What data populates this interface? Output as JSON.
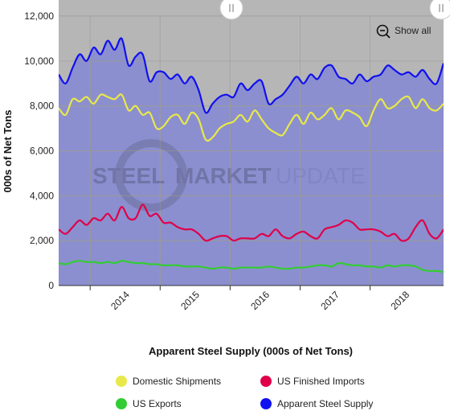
{
  "ui": {
    "show_all_label": "Show all",
    "watermark": {
      "part1": "STEEL",
      "part2": "MARKET",
      "part3": "UPDATE"
    }
  },
  "colors": {
    "plot_bg": "#8b8fcf",
    "navigator_bg": "#b6b6b6",
    "grid": "#9a9a9a",
    "domestic": "#e8e84a",
    "imports": "#e0004a",
    "exports": "#33cc33",
    "supply": "#1010f0"
  },
  "chart_data": {
    "type": "line",
    "title": "",
    "xlabel": "Apparent Steel Supply (000s of Net Tons)",
    "ylabel": "000s of Net Tons",
    "ylim": [
      0,
      12000
    ],
    "yticks": [
      "0",
      "2,000",
      "4,000",
      "6,000",
      "8,000",
      "10,000",
      "12,000"
    ],
    "xlim": [
      2013.55,
      2019.05
    ],
    "xticks": [
      "2014",
      "2015",
      "2016",
      "2017",
      "2018"
    ],
    "legend_position": "bottom",
    "series": [
      {
        "name": "Domestic Shipments",
        "color": "#e8e84a",
        "x": [
          2013.55,
          2013.65,
          2013.75,
          2013.85,
          2013.95,
          2014.05,
          2014.15,
          2014.25,
          2014.35,
          2014.45,
          2014.55,
          2014.65,
          2014.75,
          2014.85,
          2014.95,
          2015.05,
          2015.15,
          2015.25,
          2015.35,
          2015.45,
          2015.55,
          2015.65,
          2015.75,
          2015.85,
          2015.95,
          2016.05,
          2016.15,
          2016.25,
          2016.35,
          2016.45,
          2016.55,
          2016.65,
          2016.75,
          2016.85,
          2016.95,
          2017.05,
          2017.15,
          2017.25,
          2017.35,
          2017.45,
          2017.55,
          2017.65,
          2017.75,
          2017.85,
          2017.95,
          2018.05,
          2018.15,
          2018.25,
          2018.35,
          2018.45,
          2018.55,
          2018.65,
          2018.75,
          2018.85,
          2018.95,
          2019.05
        ],
        "values": [
          7900,
          7600,
          8300,
          8200,
          8400,
          8100,
          8500,
          8400,
          8300,
          8500,
          7800,
          8000,
          7600,
          7700,
          7000,
          7100,
          7500,
          7600,
          7200,
          7700,
          7400,
          6500,
          6600,
          7000,
          7200,
          7300,
          7600,
          7300,
          7800,
          7400,
          7000,
          6800,
          6700,
          7200,
          7600,
          7200,
          7700,
          7400,
          7600,
          7900,
          7400,
          7800,
          7700,
          7500,
          7100,
          7800,
          8300,
          7900,
          8000,
          8300,
          8400,
          7900,
          8300,
          7900,
          7800,
          8100
        ]
      },
      {
        "name": "US Finished Imports",
        "color": "#e0004a",
        "x": [
          2013.55,
          2013.65,
          2013.75,
          2013.85,
          2013.95,
          2014.05,
          2014.15,
          2014.25,
          2014.35,
          2014.45,
          2014.55,
          2014.65,
          2014.75,
          2014.85,
          2014.95,
          2015.05,
          2015.15,
          2015.25,
          2015.35,
          2015.45,
          2015.55,
          2015.65,
          2015.75,
          2015.85,
          2015.95,
          2016.05,
          2016.15,
          2016.25,
          2016.35,
          2016.45,
          2016.55,
          2016.65,
          2016.75,
          2016.85,
          2016.95,
          2017.05,
          2017.15,
          2017.25,
          2017.35,
          2017.45,
          2017.55,
          2017.65,
          2017.75,
          2017.85,
          2017.95,
          2018.05,
          2018.15,
          2018.25,
          2018.35,
          2018.45,
          2018.55,
          2018.65,
          2018.75,
          2018.85,
          2018.95,
          2019.05
        ],
        "values": [
          2500,
          2300,
          2600,
          2900,
          2700,
          3000,
          2900,
          3200,
          2900,
          3500,
          3000,
          3000,
          3600,
          3100,
          3200,
          2800,
          2800,
          2600,
          2500,
          2500,
          2300,
          2000,
          2100,
          2200,
          2200,
          2000,
          2100,
          2100,
          2100,
          2300,
          2200,
          2500,
          2200,
          2100,
          2300,
          2400,
          2200,
          2100,
          2500,
          2600,
          2700,
          2900,
          2800,
          2500,
          2500,
          2500,
          2400,
          2200,
          2300,
          2000,
          2100,
          2600,
          2900,
          2300,
          2100,
          2500
        ]
      },
      {
        "name": "US Exports",
        "color": "#33cc33",
        "x": [
          2013.55,
          2013.65,
          2013.75,
          2013.85,
          2013.95,
          2014.05,
          2014.15,
          2014.25,
          2014.35,
          2014.45,
          2014.55,
          2014.65,
          2014.75,
          2014.85,
          2014.95,
          2015.05,
          2015.15,
          2015.25,
          2015.35,
          2015.45,
          2015.55,
          2015.65,
          2015.75,
          2015.85,
          2015.95,
          2016.05,
          2016.15,
          2016.25,
          2016.35,
          2016.45,
          2016.55,
          2016.65,
          2016.75,
          2016.85,
          2016.95,
          2017.05,
          2017.15,
          2017.25,
          2017.35,
          2017.45,
          2017.55,
          2017.65,
          2017.75,
          2017.85,
          2017.95,
          2018.05,
          2018.15,
          2018.25,
          2018.35,
          2018.45,
          2018.55,
          2018.65,
          2018.75,
          2018.85,
          2018.95,
          2019.05
        ],
        "values": [
          1000,
          950,
          1050,
          1100,
          1050,
          1050,
          1000,
          1050,
          1000,
          1100,
          1050,
          1000,
          1000,
          950,
          950,
          900,
          900,
          900,
          850,
          850,
          850,
          800,
          750,
          800,
          800,
          750,
          800,
          800,
          800,
          800,
          850,
          800,
          750,
          750,
          800,
          800,
          850,
          900,
          900,
          850,
          1000,
          950,
          900,
          900,
          850,
          850,
          800,
          900,
          850,
          900,
          900,
          850,
          700,
          650,
          650,
          600
        ]
      },
      {
        "name": "Apparent Steel Supply",
        "color": "#1010f0",
        "x": [
          2013.55,
          2013.65,
          2013.75,
          2013.85,
          2013.95,
          2014.05,
          2014.15,
          2014.25,
          2014.35,
          2014.45,
          2014.55,
          2014.65,
          2014.75,
          2014.85,
          2014.95,
          2015.05,
          2015.15,
          2015.25,
          2015.35,
          2015.45,
          2015.55,
          2015.65,
          2015.75,
          2015.85,
          2015.95,
          2016.05,
          2016.15,
          2016.25,
          2016.35,
          2016.45,
          2016.55,
          2016.65,
          2016.75,
          2016.85,
          2016.95,
          2017.05,
          2017.15,
          2017.25,
          2017.35,
          2017.45,
          2017.55,
          2017.65,
          2017.75,
          2017.85,
          2017.95,
          2018.05,
          2018.15,
          2018.25,
          2018.35,
          2018.45,
          2018.55,
          2018.65,
          2018.75,
          2018.85,
          2018.95,
          2019.05
        ],
        "values": [
          9400,
          9000,
          9700,
          10300,
          10000,
          10600,
          10300,
          10900,
          10500,
          11000,
          9800,
          10200,
          10300,
          9100,
          9500,
          9500,
          9200,
          9400,
          9000,
          9300,
          8700,
          7700,
          8100,
          8400,
          8500,
          8400,
          9000,
          8700,
          9000,
          9100,
          8100,
          8300,
          8500,
          8900,
          9300,
          9000,
          9400,
          9200,
          9700,
          9800,
          9300,
          9200,
          9000,
          9400,
          9100,
          9300,
          9400,
          9800,
          9600,
          9400,
          9500,
          9300,
          9600,
          9200,
          9000,
          9900
        ]
      }
    ]
  }
}
